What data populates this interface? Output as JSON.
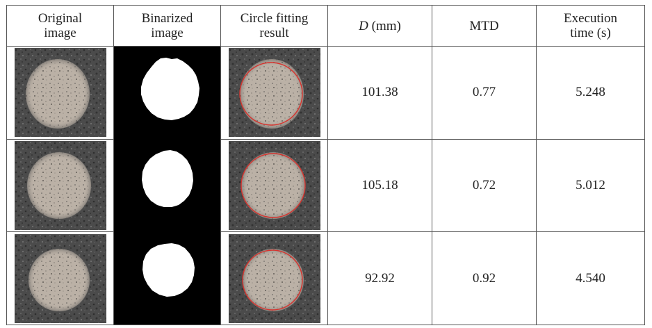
{
  "table": {
    "headers": [
      {
        "line1": "Original",
        "line2": "image"
      },
      {
        "line1": "Binarized",
        "line2": "image"
      },
      {
        "line1": "Circle fitting",
        "line2": "result"
      },
      {
        "symbol": "D",
        "unit": " (mm)"
      },
      {
        "line1": "MTD"
      },
      {
        "line1": "Execution",
        "line2": "time (s)"
      }
    ],
    "rows": [
      {
        "d": "101.38",
        "mtd": "0.77",
        "time": "5.248"
      },
      {
        "d": "105.18",
        "mtd": "0.72",
        "time": "5.012"
      },
      {
        "d": "92.92",
        "mtd": "0.92",
        "time": "4.540"
      }
    ]
  },
  "colors": {
    "pavement": "#4a4a4a",
    "sand_patch": "#b7ada2",
    "fit_circle": "#d8332e",
    "binary_bg": "#000000",
    "binary_fg": "#ffffff"
  }
}
